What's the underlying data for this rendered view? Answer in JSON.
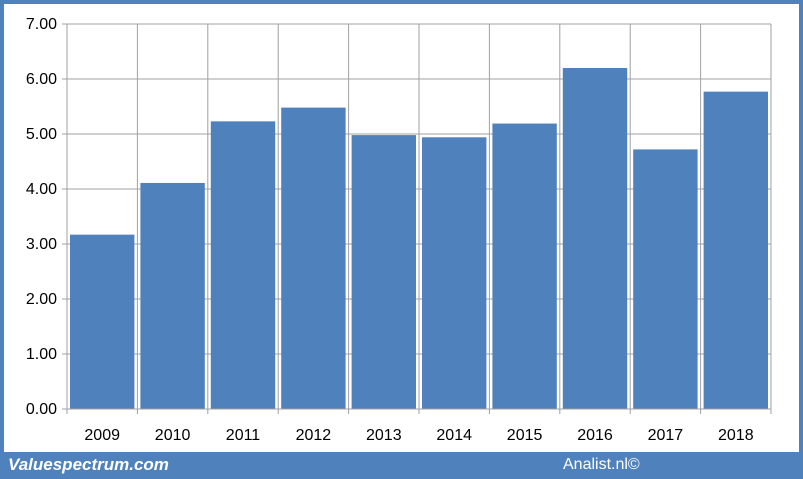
{
  "footer": {
    "left_brand": "Valuespectrum.com",
    "right_brand": "Analist.nl©"
  },
  "colors": {
    "frame": "#4f81bd",
    "bar": "#4f81bd",
    "grid": "#a0a0a0",
    "panel": "#ffffff"
  },
  "chart_data": {
    "type": "bar",
    "categories": [
      "2009",
      "2010",
      "2011",
      "2012",
      "2013",
      "2014",
      "2015",
      "2016",
      "2017",
      "2018"
    ],
    "values": [
      3.17,
      4.11,
      5.23,
      5.48,
      4.98,
      4.94,
      5.19,
      6.2,
      4.72,
      5.77
    ],
    "yticks": [
      "0.00",
      "1.00",
      "2.00",
      "3.00",
      "4.00",
      "5.00",
      "6.00",
      "7.00"
    ],
    "ylim": [
      0,
      7
    ],
    "grid": true,
    "legend": "none",
    "title": "",
    "xlabel": "",
    "ylabel": ""
  }
}
